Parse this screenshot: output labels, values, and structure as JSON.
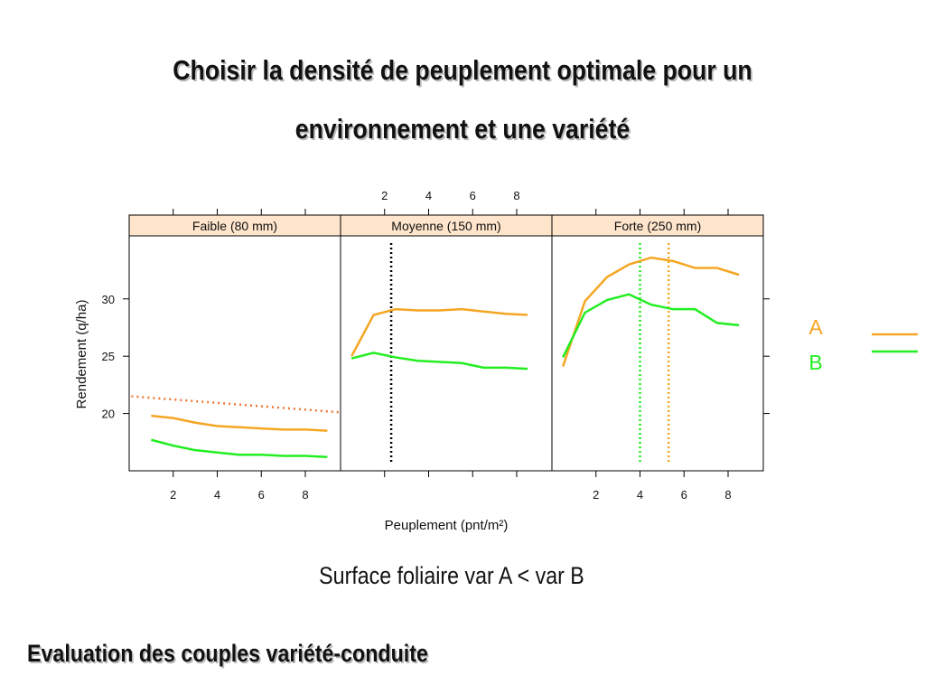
{
  "title_line1": "Choisir la densité de peuplement optimale pour un",
  "title_line2": "environnement et une variété",
  "surface_caption": "Surface foliaire var A < var B",
  "bottom_caption": "Evaluation des couples variété-conduite",
  "colors": {
    "A": "#f5a623",
    "B": "#22ee22",
    "trend": "#ee7733",
    "strip": "#ffe5cc",
    "text": "#111111",
    "vline_neutral": "#000000"
  },
  "chart_data": {
    "type": "line",
    "xlabel": "Peuplement (pnt/m²)",
    "ylabel": "Rendement (q/ha)",
    "xlim": [
      0.0,
      9.6
    ],
    "ylim": [
      15.0,
      35.5
    ],
    "x_ticks": [
      2,
      4,
      6,
      8
    ],
    "y_ticks": [
      20,
      25,
      30
    ],
    "grid": false,
    "legend_position": "right",
    "legend": [
      {
        "name": "A",
        "color_key": "A"
      },
      {
        "name": "B",
        "color_key": "B"
      }
    ],
    "panels": [
      {
        "label": "Faible (80 mm)",
        "series": [
          {
            "name": "A",
            "x": [
              1,
              2,
              3,
              4,
              5,
              6,
              7,
              8,
              9
            ],
            "values": [
              19.8,
              19.6,
              19.2,
              18.9,
              18.8,
              18.7,
              18.6,
              18.6,
              18.5
            ]
          },
          {
            "name": "B",
            "x": [
              1,
              2,
              3,
              4,
              5,
              6,
              7,
              8,
              9
            ],
            "values": [
              17.7,
              17.2,
              16.8,
              16.6,
              16.4,
              16.4,
              16.3,
              16.3,
              16.2
            ]
          }
        ],
        "trend": {
          "x": [
            0.1,
            9.6
          ],
          "values": [
            21.5,
            20.1
          ]
        },
        "vlines": []
      },
      {
        "label": "Moyenne (150 mm)",
        "series": [
          {
            "name": "A",
            "x": [
              0.5,
              1.5,
              2.5,
              3.5,
              4.5,
              5.5,
              6.5,
              7.5,
              8.5
            ],
            "values": [
              25.0,
              28.6,
              29.1,
              29.0,
              29.0,
              29.1,
              28.9,
              28.7,
              28.6
            ]
          },
          {
            "name": "B",
            "x": [
              0.5,
              1.5,
              2.5,
              3.5,
              4.5,
              5.5,
              6.5,
              7.5,
              8.5
            ],
            "values": [
              24.8,
              25.3,
              24.9,
              24.6,
              24.5,
              24.4,
              24.0,
              24.0,
              23.9
            ]
          }
        ],
        "vlines": [
          {
            "x": 2.3,
            "color_key": "vline_neutral"
          }
        ]
      },
      {
        "label": "Forte (250 mm)",
        "series": [
          {
            "name": "A",
            "x": [
              0.5,
              1.5,
              2.5,
              3.5,
              4.5,
              5.5,
              6.5,
              7.5,
              8.5
            ],
            "values": [
              24.1,
              29.8,
              31.9,
              33.0,
              33.6,
              33.3,
              32.7,
              32.7,
              32.1
            ]
          },
          {
            "name": "B",
            "x": [
              0.5,
              1.5,
              2.5,
              3.5,
              4.5,
              5.5,
              6.5,
              7.5,
              8.5
            ],
            "values": [
              24.9,
              28.8,
              29.9,
              30.4,
              29.5,
              29.1,
              29.1,
              27.9,
              27.7
            ]
          }
        ],
        "vlines": [
          {
            "x": 4.0,
            "color_key": "B"
          },
          {
            "x": 5.3,
            "color_key": "A"
          }
        ]
      }
    ]
  }
}
